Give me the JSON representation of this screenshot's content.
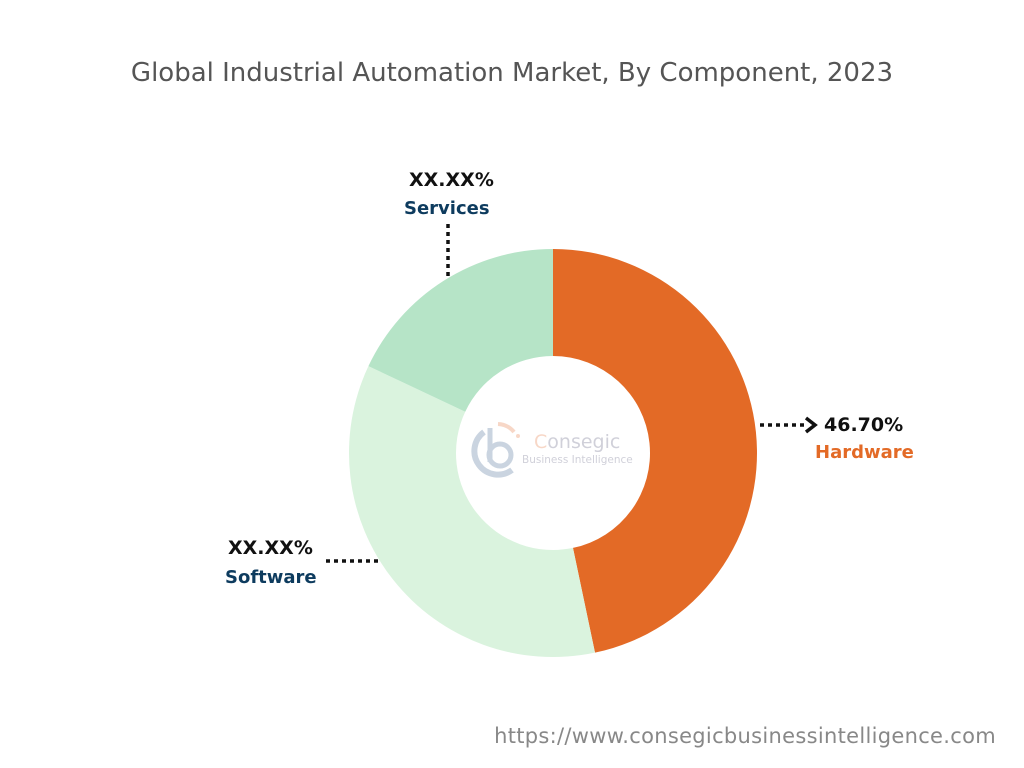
{
  "chart_data": {
    "type": "pie",
    "subtype": "donut",
    "title": "Global Industrial Automation Market, By Component, 2023",
    "slices": [
      {
        "name": "Hardware",
        "value": 46.7,
        "label": "46.70%",
        "color": "#E36A26",
        "label_color": "#E36A26"
      },
      {
        "name": "Software",
        "value": 35.3,
        "label": "XX.XX%",
        "color": "#DAF3DE",
        "label_color": "#0D3B5E"
      },
      {
        "name": "Services",
        "value": 18.0,
        "label": "XX.XX%",
        "color": "#B6E4C7",
        "label_color": "#0D3B5E"
      }
    ],
    "start_angle": "top, clockwise"
  },
  "watermark": {
    "brand": "Consegic",
    "tagline": "Business Intelligence"
  },
  "footer": {
    "url": "https://www.consegicbusinessintelligence.com"
  }
}
